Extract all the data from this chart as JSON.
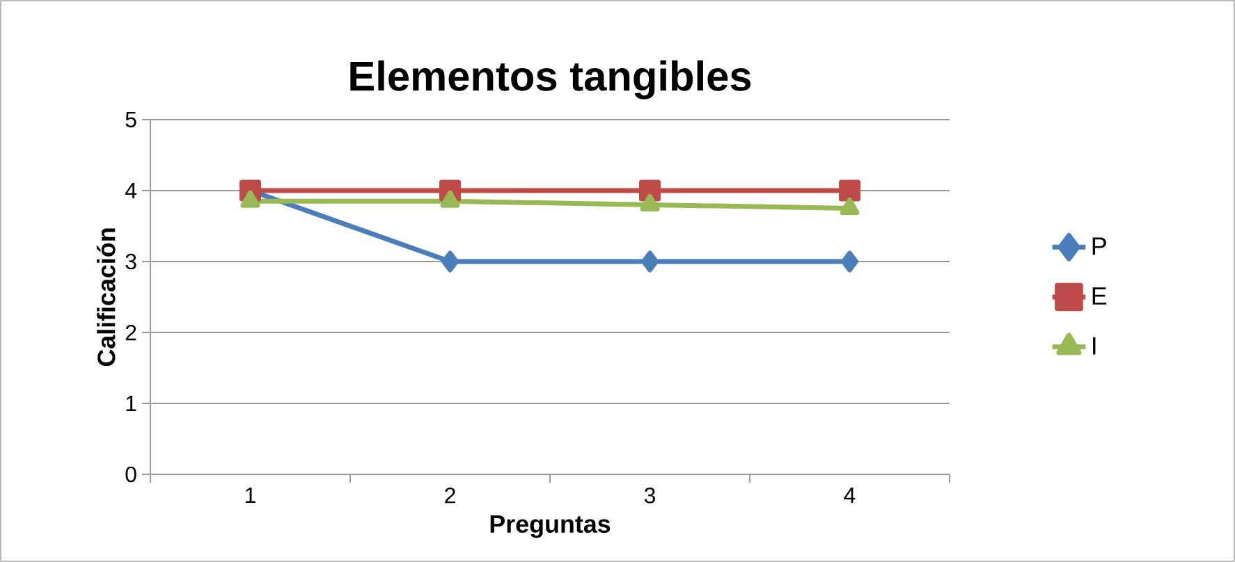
{
  "chart_data": {
    "type": "line",
    "title": "Elementos tangibles",
    "xlabel": "Preguntas",
    "ylabel": "Calificación",
    "categories": [
      "1",
      "2",
      "3",
      "4"
    ],
    "ylim": [
      0,
      5
    ],
    "yticks": [
      0,
      1,
      2,
      3,
      4,
      5
    ],
    "grid": "y",
    "legend": "right",
    "line_style": "solid",
    "series": [
      {
        "name": "P",
        "color": "#4a7ebb",
        "marker": "diamond",
        "values": [
          4,
          3,
          3,
          3
        ]
      },
      {
        "name": "E",
        "color": "#be4b48",
        "marker": "square",
        "values": [
          4,
          4,
          4,
          4
        ]
      },
      {
        "name": "I",
        "color": "#98b954",
        "marker": "triangle",
        "values": [
          3.85,
          3.85,
          3.8,
          3.75
        ]
      }
    ]
  }
}
